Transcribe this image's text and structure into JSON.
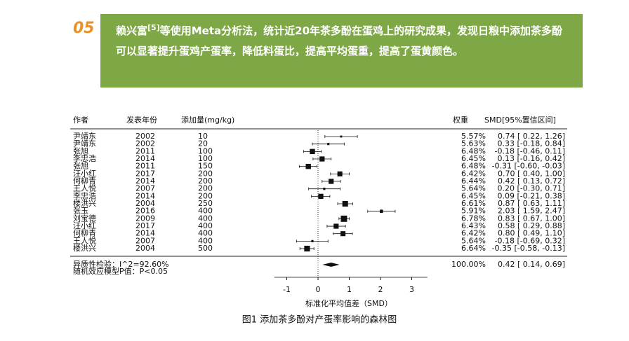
{
  "header": {
    "number": "05",
    "author": "赖兴富",
    "citation": "[5]",
    "text": "等使用Meta分析法，统计近20年茶多酚在蛋鸡上的研究成果，发现日粮中添加茶多酚可以显著提升蛋鸡产蛋率，降低料蛋比，提高平均蛋重，提高了蛋黄颜色。"
  },
  "chart_data": {
    "type": "forest",
    "column_headers": {
      "author": "作者",
      "year": "发表年份",
      "dose": "添加量(mg/kg)",
      "weight": "权重",
      "ci": "SMD[95%置信区间]"
    },
    "authors": [
      "尹靖东",
      "尹靖东",
      "张旭",
      "李忠浩",
      "张旭",
      "汪小红",
      "何柳青",
      "王人悦",
      "李忠浩",
      "楼洪兴",
      "张玉",
      "刘宝德",
      "汪小红",
      "何柳青",
      "王人悦",
      "楼洪兴"
    ],
    "years": [
      "2002",
      "2002",
      "2011",
      "2014",
      "2011",
      "2017",
      "2014",
      "2007",
      "2014",
      "2004",
      "2016",
      "2009",
      "2017",
      "2014",
      "2007",
      "2004"
    ],
    "doses": [
      "10",
      "20",
      "100",
      "100",
      "150",
      "200",
      "200",
      "200",
      "200",
      "250",
      "400",
      "400",
      "400",
      "400",
      "400",
      "500"
    ],
    "weights": [
      5.57,
      5.63,
      6.48,
      6.45,
      6.48,
      6.42,
      6.44,
      5.64,
      6.45,
      6.61,
      5.91,
      6.78,
      6.43,
      6.42,
      5.64,
      6.64
    ],
    "weight_labels": [
      "5.57%",
      "5.63%",
      "6.48%",
      "6.45%",
      "6.48%",
      "6.42%",
      "6.44%",
      "5.64%",
      "6.45%",
      "6.61%",
      "5.91%",
      "6.78%",
      "6.43%",
      "6.42%",
      "5.64%",
      "6.64%"
    ],
    "smd": [
      0.74,
      0.33,
      -0.18,
      0.13,
      -0.31,
      0.7,
      0.42,
      0.2,
      0.09,
      0.87,
      2.03,
      0.83,
      0.58,
      0.8,
      -0.18,
      -0.35
    ],
    "lower": [
      0.22,
      -0.18,
      -0.46,
      -0.16,
      -0.6,
      0.4,
      0.13,
      -0.3,
      -0.21,
      0.63,
      1.59,
      0.67,
      0.29,
      0.49,
      -0.69,
      -0.58
    ],
    "upper": [
      1.26,
      0.84,
      0.11,
      0.42,
      -0.03,
      1.0,
      0.72,
      0.71,
      0.38,
      1.11,
      2.47,
      1.0,
      0.88,
      1.1,
      0.32,
      -0.13
    ],
    "ci_labels": [
      "0.74 [ 0.22, 1.26]",
      "0.33 [-0.18, 0.84]",
      "-0.18 [-0.46, 0.11]",
      "0.13 [-0.16, 0.42]",
      "-0.31 [-0.60, -0.03]",
      "0.70 [ 0.40, 1.00]",
      "0.42 [ 0.13, 0.72]",
      "0.20 [-0.30, 0.71]",
      "0.09 [-0.21, 0.38]",
      "0.87 [ 0.63, 1.11]",
      "2.03 [ 1.59, 2.47]",
      "0.83 [ 0.67, 1.00]",
      "0.58 [ 0.29, 0.88]",
      "0.80 [ 0.49, 1.10]",
      "-0.18 [-0.69, 0.32]",
      "-0.35 [-0.58, -0.13]"
    ],
    "summary": {
      "heterogeneity": "异质性检验：I^2=92.60%",
      "p_value": "随机效应模型P值：P<0.05",
      "weight": 100,
      "weight_label": "100.00%",
      "smd": 0.42,
      "lower": 0.14,
      "upper": 0.69,
      "ci_label": "0.42 [ 0.14, 0.69]"
    },
    "xlim": [
      -1.4,
      3.5
    ],
    "xticks": [
      -1,
      0,
      1,
      2,
      3
    ],
    "xlabel": "标准化平均值差（SMD）",
    "caption": "图1  添加茶多酚对产蛋率影响的森林图"
  }
}
